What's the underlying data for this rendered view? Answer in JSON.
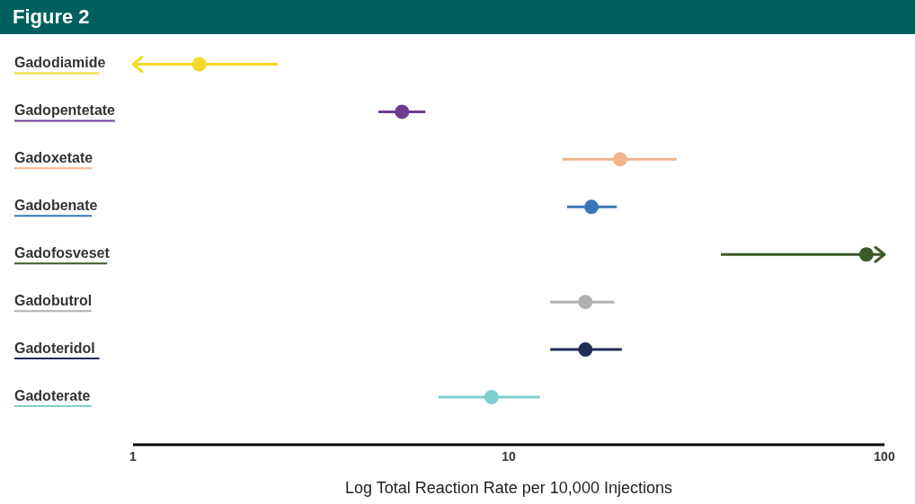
{
  "chart_data": {
    "type": "scatter",
    "title": "Figure 2",
    "xlabel": "Log Total Reaction Rate per 10,000 Injections",
    "categories": [
      "Gadodiamide",
      "Gadopentetate",
      "Gadoxetate",
      "Gadobenate",
      "Gadofosveset",
      "Gadobutrol",
      "Gadoteridol",
      "Gadoterate"
    ],
    "series": [
      {
        "values": [
          1.5,
          5.2,
          19.8,
          16.6,
          89.5,
          16.0,
          16.0,
          9.0
        ],
        "errors": [
          [
            1,
            2.43
          ],
          [
            4.5,
            6.0
          ],
          [
            13.9,
            28
          ],
          [
            14.3,
            19.4
          ],
          [
            36.7,
            100
          ],
          [
            12.9,
            19.1
          ],
          [
            12.9,
            20.0
          ],
          [
            6.5,
            12.1
          ]
        ],
        "colors": [
          "#f0dc28",
          "#6a3d8f",
          "#f2b48a",
          "#3a75b8",
          "#3d5a2a",
          "#b0b0b0",
          "#1f2d5a",
          "#7fcfcf"
        ]
      }
    ],
    "orientation": "horizontal",
    "log": "x",
    "xlim": [
      1,
      100
    ],
    "xticks": [
      1,
      10,
      100
    ],
    "marker": "circle",
    "grid": false,
    "legend": false
  }
}
